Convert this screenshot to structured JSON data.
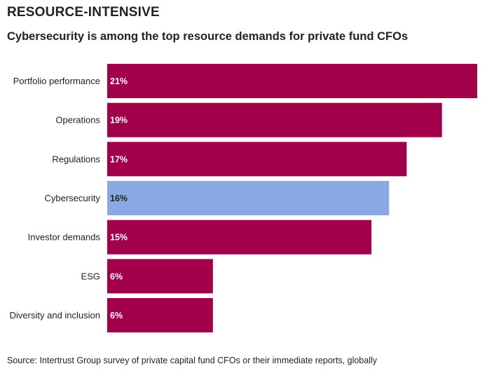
{
  "title": "RESOURCE-INTENSIVE",
  "subtitle": "Cybersecurity is among the top resource demands for private fund CFOs",
  "source": "Source: Intertrust Group survey of private capital fund CFOs or their immediate reports, globally",
  "colors": {
    "primary": "#a3004b",
    "highlight": "#8aa9e3",
    "label_on_primary": "#ffffff",
    "label_on_highlight": "#222222"
  },
  "chart_data": {
    "type": "bar",
    "orientation": "horizontal",
    "title": "RESOURCE-INTENSIVE",
    "subtitle": "Cybersecurity is among the top resource demands for private fund CFOs",
    "xlabel": "",
    "ylabel": "",
    "grid": false,
    "unit": "%",
    "xlim": [
      0,
      21
    ],
    "highlight_category": "Cybersecurity",
    "categories": [
      "Portfolio performance",
      "Operations",
      "Regulations",
      "Cybersecurity",
      "Investor demands",
      "ESG",
      "Diversity and inclusion"
    ],
    "values": [
      21,
      19,
      17,
      16,
      15,
      6,
      6
    ],
    "value_labels": [
      "21%",
      "19%",
      "17%",
      "16%",
      "15%",
      "6%",
      "6%"
    ]
  }
}
